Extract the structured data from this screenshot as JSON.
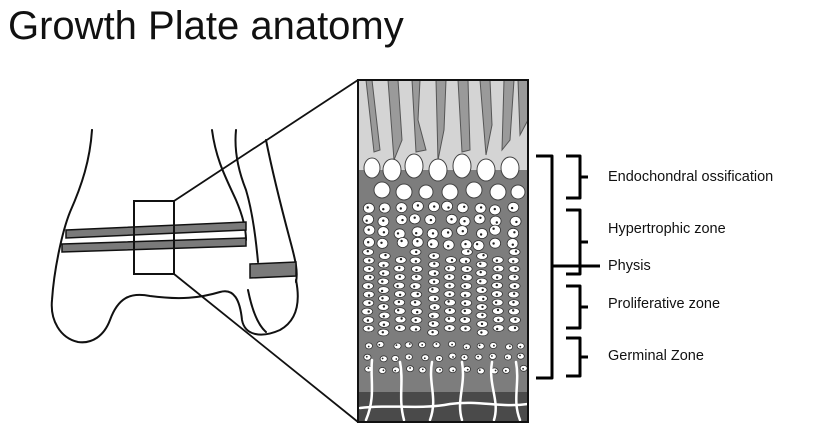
{
  "title": "Growth Plate anatomy",
  "labels": {
    "endochondral": "Endochondral ossification",
    "hypertrophic": "Hypertrophic zone",
    "physis": "Physis",
    "proliferative": "Proliferative zone",
    "germinal": "Germinal Zone"
  },
  "colors": {
    "line": "#111111",
    "cartilage": "#8a8a8a",
    "matrix": "#7d7d7d",
    "bone_dark": "#4a4a4a",
    "cell": "#ffffff",
    "growth_band": "#7a7a7a"
  }
}
